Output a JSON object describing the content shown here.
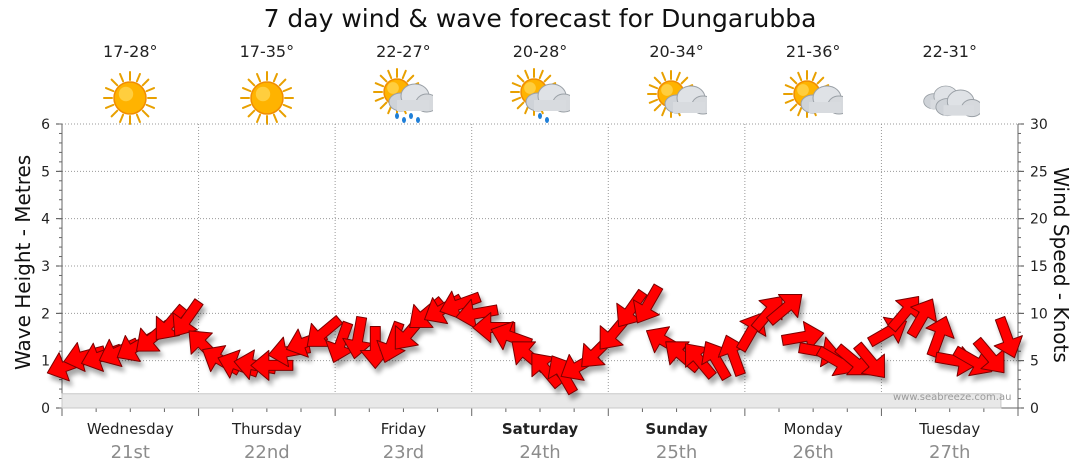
{
  "chart_data": {
    "type": "line",
    "title": "7 day wind & wave forecast for Dungarubba",
    "ylabel_left": "Wave Height - Metres",
    "ylabel_right": "Wind Speed - Knots",
    "ylim_left": [
      0,
      6
    ],
    "ylim_right": [
      0,
      30
    ],
    "yticks_left": [
      "0",
      "1",
      "2",
      "3",
      "4",
      "5",
      "6"
    ],
    "yticks_right": [
      "0",
      "5",
      "10",
      "15",
      "20",
      "25",
      "30"
    ],
    "grid": true,
    "days": [
      {
        "name": "Wednesday",
        "date": "21st",
        "temp": "17-28°",
        "icon": "sun-icon",
        "bold": false
      },
      {
        "name": "Thursday",
        "date": "22nd",
        "temp": "17-35°",
        "icon": "sun-icon",
        "bold": false
      },
      {
        "name": "Friday",
        "date": "23rd",
        "temp": "22-27°",
        "icon": "sun-cloud-rain-icon",
        "bold": false
      },
      {
        "name": "Saturday",
        "date": "24th",
        "temp": "20-28°",
        "icon": "sun-cloud-drizzle-icon",
        "bold": true
      },
      {
        "name": "Sunday",
        "date": "25th",
        "temp": "20-34°",
        "icon": "sun-cloud-icon",
        "bold": true
      },
      {
        "name": "Monday",
        "date": "26th",
        "temp": "21-36°",
        "icon": "sun-cloud-icon",
        "bold": false
      },
      {
        "name": "Tuesday",
        "date": "27th",
        "temp": "22-31°",
        "icon": "cloud-icon",
        "bold": false
      }
    ],
    "series": [
      {
        "name": "Wind",
        "color": "#ff0000",
        "unit": "knots",
        "x_hours": [
          0,
          3,
          6,
          9,
          12,
          15,
          18,
          21,
          24,
          27,
          30,
          33,
          36,
          39,
          42,
          45,
          48,
          51,
          54,
          57,
          60,
          63,
          66,
          69,
          72,
          75,
          78,
          81,
          84,
          87,
          90,
          93,
          96,
          99,
          102,
          105,
          108,
          111,
          114,
          117,
          120,
          123,
          126,
          129,
          132,
          135,
          138,
          141,
          144,
          147,
          150,
          153,
          156,
          159,
          162,
          165
        ],
        "values": [
          4.5,
          5.5,
          5.5,
          6,
          6.5,
          7.5,
          9,
          9.5,
          6.5,
          5,
          4.5,
          4.5,
          4.5,
          6,
          7,
          8,
          7,
          7.5,
          6.5,
          7,
          8,
          10,
          10.5,
          11,
          10,
          8.5,
          7.5,
          5.5,
          4,
          3.5,
          4.5,
          6,
          8,
          10.5,
          11,
          7,
          5.5,
          5,
          5,
          5.5,
          8,
          10,
          10.5,
          7.5,
          6,
          5,
          5,
          5,
          8,
          10,
          9.5,
          7.5,
          5,
          5,
          5.5,
          7.5
        ],
        "directions_deg": [
          250,
          255,
          250,
          245,
          240,
          230,
          220,
          215,
          315,
          300,
          290,
          280,
          270,
          260,
          250,
          230,
          200,
          190,
          180,
          200,
          220,
          230,
          240,
          250,
          260,
          270,
          290,
          310,
          320,
          330,
          240,
          225,
          220,
          215,
          210,
          300,
          310,
          320,
          330,
          340,
          30,
          40,
          50,
          80,
          100,
          120,
          130,
          140,
          60,
          40,
          30,
          20,
          100,
          120,
          140,
          160
        ]
      },
      {
        "name": "Waves",
        "color": "#dddddd",
        "unit": "metres",
        "x_hours": [
          0,
          24,
          48,
          72,
          96,
          120,
          144,
          165
        ],
        "values": [
          0.3,
          0.3,
          0.3,
          0.3,
          0.3,
          0.3,
          0.3,
          0.3
        ]
      }
    ]
  },
  "credit": "www.seabreeze.com.au"
}
